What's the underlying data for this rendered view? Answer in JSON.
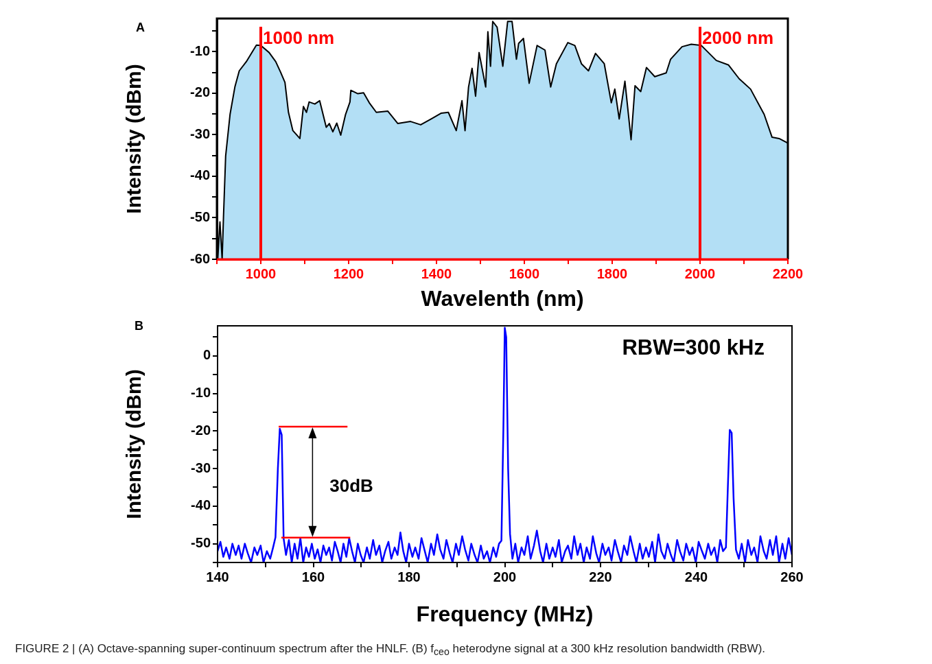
{
  "chart_data": [
    {
      "type": "area",
      "xlabel": "Wavelenth (nm)",
      "ylabel": "Intensity (dBm)",
      "xlim": [
        900,
        2200
      ],
      "ylim": [
        -60,
        -2
      ],
      "xticks": [
        {
          "value": 900,
          "label": null
        },
        1000,
        {
          "value": 1100,
          "label": null
        },
        1200,
        {
          "value": 1300,
          "label": null
        },
        1400,
        {
          "value": 1500,
          "label": null
        },
        1600,
        {
          "value": 1700,
          "label": null
        },
        1800,
        {
          "value": 1900,
          "label": null
        },
        2000,
        {
          "value": 2100,
          "label": null
        },
        2200
      ],
      "yticks": [
        -60,
        {
          "value": -55,
          "label": null
        },
        -50,
        {
          "value": -45,
          "label": null
        },
        -40,
        {
          "value": -35,
          "label": null
        },
        -30,
        {
          "value": -25,
          "label": null
        },
        -20,
        {
          "value": -15,
          "label": null
        },
        -10,
        {
          "value": -5,
          "label": null
        }
      ],
      "series": [
        {
          "color": "#b3dff5",
          "x": [
            902,
            907,
            912,
            915,
            920,
            930,
            941,
            951,
            967,
            990,
            1000,
            1019,
            1034,
            1045,
            1055,
            1063,
            1073,
            1089,
            1097,
            1104,
            1110,
            1123,
            1134,
            1149,
            1156,
            1164,
            1173,
            1182,
            1193,
            1203,
            1205,
            1221,
            1234,
            1247,
            1263,
            1289,
            1312,
            1341,
            1364,
            1388,
            1411,
            1427,
            1445,
            1458,
            1465,
            1473,
            1481,
            1489,
            1497,
            1512,
            1517,
            1523,
            1528,
            1538,
            1551,
            1562,
            1572,
            1582,
            1587,
            1598,
            1611,
            1629,
            1647,
            1660,
            1673,
            1699,
            1715,
            1730,
            1746,
            1762,
            1782,
            1798,
            1806,
            1816,
            1829,
            1843,
            1852,
            1865,
            1878,
            1897,
            1923,
            1933,
            1959,
            1980,
            2003,
            2037,
            2065,
            2089,
            2115,
            2146,
            2164,
            2180,
            2200,
            2200
          ],
          "values": [
            -60,
            -51,
            -60,
            -50,
            -35.1,
            -25.1,
            -18.5,
            -14.6,
            -12.4,
            -8.4,
            -8.5,
            -10.2,
            -12.4,
            -14.9,
            -17.4,
            -24.6,
            -29,
            -30.9,
            -23.2,
            -24.6,
            -22.1,
            -22.6,
            -21.8,
            -28.2,
            -27.3,
            -29.3,
            -27.2,
            -30.1,
            -25.1,
            -22.1,
            -19.3,
            -20.1,
            -19.9,
            -22.3,
            -24.6,
            -24.3,
            -27.3,
            -26.8,
            -27.6,
            -26.2,
            -24.8,
            -24.6,
            -29,
            -21.8,
            -29,
            -18.5,
            -14,
            -20.7,
            -10.2,
            -18.5,
            -5.2,
            -13.5,
            -2.7,
            -4.1,
            -13.5,
            -2.7,
            -2.7,
            -11.8,
            -8,
            -6.8,
            -17.6,
            -8.5,
            -9.6,
            -18.5,
            -12.9,
            -7.8,
            -8.5,
            -12.9,
            -14.6,
            -10.4,
            -12.9,
            -22.3,
            -19,
            -26.2,
            -17.1,
            -31.2,
            -18.2,
            -19.6,
            -13.8,
            -16,
            -15.1,
            -11.8,
            -8.8,
            -8.2,
            -8.5,
            -12.1,
            -13.2,
            -16.5,
            -19,
            -25.1,
            -30.6,
            -30.9,
            -32,
            -60
          ]
        }
      ],
      "ref_lines": [
        {
          "axis": "x",
          "value": 1000,
          "label": "1000 nm",
          "color": "#ff0000"
        },
        {
          "axis": "x",
          "value": 2000,
          "label": "2000 nm",
          "color": "#ff0000"
        }
      ],
      "annotations": [
        "A"
      ]
    },
    {
      "type": "line",
      "xlabel": "Frequency (MHz)",
      "ylabel": "Intensity (dBm)",
      "xlim": [
        140,
        260
      ],
      "ylim": [
        -55,
        8
      ],
      "xticks": [
        140,
        {
          "value": 150,
          "label": null
        },
        160,
        {
          "value": 170,
          "label": null
        },
        180,
        {
          "value": 190,
          "label": null
        },
        200,
        {
          "value": 210,
          "label": null
        },
        220,
        {
          "value": 230,
          "label": null
        },
        240,
        {
          "value": 250,
          "label": null
        },
        260
      ],
      "yticks": [
        {
          "value": -55,
          "label": null
        },
        -50,
        {
          "value": -45,
          "label": null
        },
        -40,
        {
          "value": -35,
          "label": null
        },
        -30,
        {
          "value": -25,
          "label": null
        },
        -20,
        {
          "value": -15,
          "label": null
        },
        -10,
        {
          "value": -5,
          "label": null
        },
        0,
        {
          "value": 5,
          "label": null
        }
      ],
      "series": [
        {
          "color": "#0000ff",
          "x": [
            140,
            140.6,
            141.2,
            141.8,
            142.5,
            143.1,
            143.8,
            144.4,
            145,
            145.7,
            146.3,
            147,
            147.7,
            148.3,
            149,
            149.6,
            150.3,
            151,
            151.6,
            152.1,
            152.6,
            153,
            153.4,
            153.8,
            154.3,
            154.9,
            155.5,
            156.1,
            156.7,
            157.3,
            157.9,
            158.5,
            159.1,
            159.7,
            160.3,
            160.9,
            161.5,
            162.1,
            162.7,
            163.3,
            163.9,
            164.5,
            165.1,
            165.7,
            166.3,
            166.9,
            167.5,
            168.1,
            168.7,
            169.3,
            169.9,
            170.5,
            171.2,
            171.8,
            172.5,
            173.1,
            173.8,
            174.4,
            175,
            175.7,
            176.3,
            177,
            177.6,
            178.2,
            178.8,
            179.4,
            180,
            180.7,
            181.3,
            182,
            182.6,
            183.3,
            183.9,
            184.6,
            185.2,
            185.9,
            186.5,
            187.2,
            187.8,
            188.5,
            189.1,
            189.8,
            190.4,
            191.1,
            191.7,
            192.4,
            193,
            193.7,
            194.3,
            195,
            195.6,
            196.3,
            196.9,
            197.6,
            198.2,
            198.8,
            199.3,
            199.7,
            200,
            200.3,
            200.7,
            201.1,
            201.6,
            202.2,
            202.8,
            203.5,
            204.1,
            204.8,
            205.4,
            206.1,
            206.7,
            207.4,
            208,
            208.7,
            209.3,
            210,
            210.6,
            211.3,
            211.9,
            212.6,
            213.2,
            213.9,
            214.5,
            215.2,
            215.8,
            216.5,
            217.1,
            217.8,
            218.4,
            219.1,
            219.7,
            220.4,
            221,
            221.7,
            222.3,
            223,
            223.6,
            224.3,
            224.9,
            225.6,
            226.2,
            226.9,
            227.5,
            228.2,
            228.8,
            229.5,
            230.1,
            230.8,
            231.4,
            232.1,
            232.7,
            233.4,
            234,
            234.7,
            235.3,
            236,
            236.6,
            237.3,
            237.9,
            238.6,
            239.2,
            239.9,
            240.5,
            241.2,
            241.8,
            242.5,
            243.1,
            243.8,
            244.4,
            245,
            245.6,
            246.2,
            246.6,
            247,
            247.4,
            247.8,
            248.3,
            248.9,
            249.5,
            250.2,
            250.8,
            251.5,
            252.1,
            252.8,
            253.4,
            254.1,
            254.7,
            255.4,
            256,
            256.7,
            257.3,
            258,
            258.6,
            259.3,
            260
          ],
          "values": [
            -52,
            -49.5,
            -53.5,
            -51,
            -54,
            -50,
            -53,
            -50.5,
            -54,
            -50,
            -52.5,
            -55,
            -51,
            -53,
            -50.5,
            -55,
            -52,
            -54,
            -51,
            -48.3,
            -30,
            -19.4,
            -21,
            -48.6,
            -53,
            -49,
            -55,
            -50,
            -54,
            -48.5,
            -55,
            -51,
            -53.5,
            -50,
            -54,
            -51.5,
            -55,
            -50.5,
            -53,
            -51,
            -54.5,
            -49.5,
            -52,
            -55,
            -50,
            -53.5,
            -48.5,
            -52,
            -55,
            -50,
            -53,
            -55,
            -51,
            -54,
            -49,
            -53,
            -50.5,
            -55,
            -52,
            -49.5,
            -54,
            -51,
            -53,
            -47,
            -52,
            -55,
            -50,
            -53.5,
            -51,
            -54,
            -48.5,
            -52,
            -55,
            -50,
            -53,
            -47.5,
            -51.5,
            -54,
            -49,
            -52.5,
            -55,
            -50,
            -53,
            -48,
            -51.5,
            -54.5,
            -50,
            -53,
            -55,
            -50.5,
            -54,
            -52,
            -55,
            -51,
            -53.5,
            -50,
            -49.2,
            -20,
            7.5,
            5,
            -30,
            -47.4,
            -54,
            -50,
            -55,
            -51,
            -53,
            -48,
            -54,
            -50.5,
            -46.5,
            -52,
            -55,
            -50,
            -54,
            -51,
            -53.5,
            -49,
            -55,
            -52,
            -50.5,
            -54,
            -48,
            -53,
            -50,
            -55,
            -51,
            -54,
            -48,
            -52.5,
            -55,
            -50,
            -53,
            -51,
            -54.5,
            -49,
            -52,
            -55,
            -50.5,
            -53,
            -48,
            -52,
            -55,
            -50,
            -54,
            -51,
            -53.5,
            -49.5,
            -55,
            -47.5,
            -52,
            -54,
            -50,
            -53,
            -55,
            -49,
            -52,
            -54.5,
            -50,
            -53,
            -51,
            -55,
            -49.5,
            -52,
            -54,
            -50,
            -53,
            -51,
            -55,
            -49,
            -52,
            -51,
            -35,
            -19.7,
            -20.5,
            -38,
            -51.6,
            -54,
            -50,
            -55,
            -49,
            -53,
            -51,
            -55,
            -48,
            -52,
            -54,
            -49,
            -53,
            -48,
            -55,
            -50,
            -54,
            -48.5,
            -53
          ]
        }
      ],
      "annotations": [
        "B",
        "RBW=300 kHz",
        "30dB",
        "FIGURE 2 | (A) Octave-spanning super-continuum spectrum after the HNLF. (B) f$_{ceo}$ heterodyne signal at a 300 kHz resolution bandwidth (RBW)."
      ]
    }
  ]
}
